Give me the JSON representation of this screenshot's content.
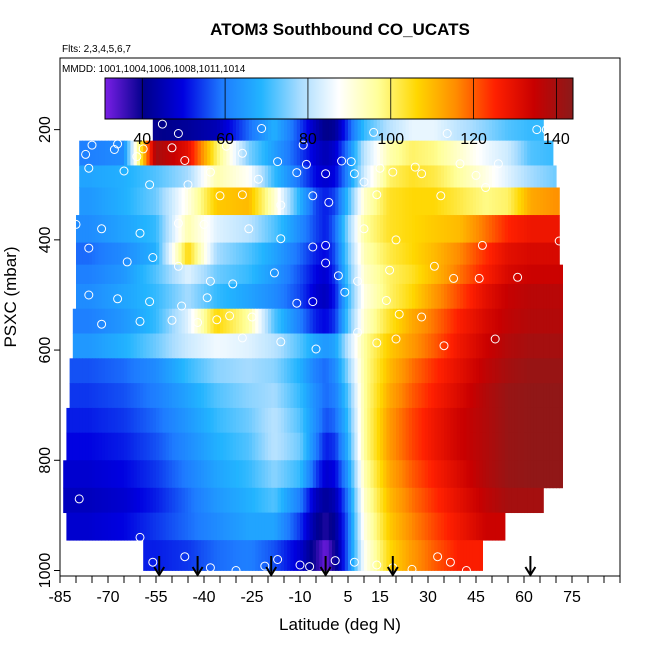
{
  "chart_data": {
    "type": "heatmap",
    "title": "ATOM3 Southbound CO_UCATS",
    "flights_label": "Flts: 2,3,4,5,6,7",
    "dates_label": "MMDD: 1001,1004,1006,1008,1011,1014",
    "xlabel": "Latitude (deg N)",
    "ylabel": "PSXC (mbar)",
    "xlim": [
      -85,
      90
    ],
    "ylim": [
      1010,
      70
    ],
    "x_ticks": [
      -85,
      -70,
      -55,
      -40,
      -25,
      -10,
      5,
      15,
      30,
      45,
      60,
      75
    ],
    "x_tick_labels": [
      "-85",
      "-70",
      "-55",
      "-40",
      "-25",
      "-10",
      "5",
      "15",
      "30",
      "45",
      "60",
      "75"
    ],
    "y_ticks": [
      200,
      400,
      600,
      800,
      1000
    ],
    "y_tick_labels": [
      "200",
      "400",
      "600",
      "800",
      "1000"
    ],
    "colorbar": {
      "range": [
        31,
        144
      ],
      "ticks": [
        40,
        60,
        80,
        100,
        120,
        140
      ],
      "tick_labels": [
        "40",
        "60",
        "80",
        "100",
        "120",
        "140"
      ],
      "colors": [
        "#7a1fe6",
        "#00008b",
        "#0000e0",
        "#1e7bff",
        "#22b4ff",
        "#a8dcff",
        "#ffffff",
        "#ffff99",
        "#ffd700",
        "#ff8c00",
        "#ff2000",
        "#c80000",
        "#8b1a1a"
      ]
    },
    "grid": false,
    "lat_nodes": [
      -76,
      -65,
      -55,
      -45,
      -36,
      -26,
      -18,
      -10,
      -5,
      -2,
      1,
      5,
      10,
      18,
      25,
      32,
      40,
      48,
      55,
      62,
      70
    ],
    "pressure_bands": [
      {
        "p_top": 175,
        "p_bottom": 220,
        "lat_min": -56,
        "lat_max": 66,
        "values": [
          null,
          null,
          40,
          42,
          45,
          58,
          68,
          55,
          45,
          40,
          42,
          55,
          70,
          80,
          85,
          85,
          80,
          76,
          72,
          70,
          70
        ]
      },
      {
        "p_top": 220,
        "p_bottom": 265,
        "lat_min": -79,
        "lat_max": 69,
        "values": [
          60,
          62,
          140,
          130,
          100,
          75,
          65,
          55,
          48,
          45,
          48,
          60,
          80,
          95,
          100,
          98,
          92,
          86,
          82,
          72,
          70
        ]
      },
      {
        "p_top": 265,
        "p_bottom": 305,
        "lat_min": -79,
        "lat_max": 70,
        "values": [
          66,
          68,
          72,
          78,
          95,
          88,
          70,
          58,
          50,
          48,
          50,
          62,
          82,
          100,
          104,
          102,
          96,
          90,
          84,
          78,
          74
        ]
      },
      {
        "p_top": 305,
        "p_bottom": 355,
        "lat_min": -79,
        "lat_max": 71,
        "values": [
          64,
          68,
          74,
          90,
          108,
          110,
          92,
          68,
          55,
          52,
          55,
          70,
          92,
          104,
          106,
          106,
          102,
          98,
          100,
          112,
          115
        ]
      },
      {
        "p_top": 355,
        "p_bottom": 405,
        "lat_min": -80,
        "lat_max": 71,
        "values": [
          62,
          66,
          70,
          95,
          84,
          80,
          72,
          62,
          55,
          52,
          58,
          76,
          96,
          104,
          106,
          108,
          110,
          118,
          125,
          128,
          128
        ]
      },
      {
        "p_top": 405,
        "p_bottom": 445,
        "lat_min": -80,
        "lat_max": 71,
        "values": [
          58,
          62,
          68,
          106,
          78,
          72,
          66,
          58,
          52,
          50,
          56,
          74,
          94,
          102,
          106,
          110,
          116,
          124,
          130,
          132,
          132
        ]
      },
      {
        "p_top": 445,
        "p_bottom": 480,
        "lat_min": -80,
        "lat_max": 72,
        "values": [
          60,
          64,
          72,
          84,
          74,
          70,
          64,
          56,
          50,
          48,
          54,
          72,
          92,
          100,
          104,
          110,
          118,
          126,
          132,
          134,
          134
        ]
      },
      {
        "p_top": 480,
        "p_bottom": 525,
        "lat_min": -80,
        "lat_max": 72,
        "values": [
          62,
          66,
          70,
          78,
          70,
          66,
          62,
          55,
          48,
          46,
          52,
          70,
          90,
          100,
          106,
          114,
          122,
          130,
          135,
          137,
          137
        ]
      },
      {
        "p_top": 525,
        "p_bottom": 570,
        "lat_min": -81,
        "lat_max": 72,
        "values": [
          60,
          64,
          70,
          84,
          106,
          96,
          72,
          60,
          52,
          50,
          54,
          72,
          92,
          104,
          112,
          118,
          126,
          132,
          136,
          138,
          138
        ]
      },
      {
        "p_top": 570,
        "p_bottom": 615,
        "lat_min": -81,
        "lat_max": 72,
        "values": [
          64,
          68,
          74,
          82,
          86,
          84,
          80,
          72,
          66,
          64,
          66,
          80,
          96,
          108,
          114,
          120,
          128,
          134,
          138,
          140,
          140
        ]
      },
      {
        "p_top": 615,
        "p_bottom": 660,
        "lat_min": -82,
        "lat_max": 72,
        "values": [
          56,
          58,
          62,
          70,
          76,
          78,
          76,
          68,
          60,
          58,
          62,
          76,
          96,
          110,
          118,
          124,
          130,
          136,
          140,
          142,
          142
        ]
      },
      {
        "p_top": 660,
        "p_bottom": 705,
        "lat_min": -82,
        "lat_max": 72,
        "values": [
          54,
          56,
          60,
          66,
          72,
          76,
          78,
          70,
          62,
          58,
          60,
          72,
          96,
          112,
          120,
          126,
          132,
          138,
          142,
          143,
          143
        ]
      },
      {
        "p_top": 705,
        "p_bottom": 750,
        "lat_min": -83,
        "lat_max": 72,
        "values": [
          52,
          54,
          58,
          64,
          70,
          74,
          80,
          72,
          62,
          56,
          58,
          70,
          96,
          114,
          122,
          128,
          134,
          138,
          142,
          143,
          143
        ]
      },
      {
        "p_top": 750,
        "p_bottom": 800,
        "lat_min": -83,
        "lat_max": 72,
        "values": [
          50,
          52,
          56,
          62,
          68,
          72,
          80,
          74,
          60,
          52,
          54,
          68,
          96,
          114,
          122,
          128,
          134,
          138,
          142,
          143,
          143
        ]
      },
      {
        "p_top": 800,
        "p_bottom": 850,
        "lat_min": -84,
        "lat_max": 72,
        "values": [
          48,
          50,
          54,
          60,
          66,
          70,
          76,
          70,
          55,
          48,
          50,
          64,
          94,
          112,
          120,
          126,
          132,
          138,
          142,
          143,
          143
        ]
      },
      {
        "p_top": 850,
        "p_bottom": 895,
        "lat_min": -84,
        "lat_max": 66,
        "values": [
          46,
          48,
          52,
          58,
          64,
          68,
          72,
          60,
          46,
          42,
          45,
          60,
          92,
          110,
          118,
          124,
          130,
          136,
          140,
          null,
          null
        ]
      },
      {
        "p_top": 895,
        "p_bottom": 945,
        "lat_min": -83,
        "lat_max": 54,
        "values": [
          48,
          50,
          54,
          58,
          62,
          66,
          66,
          54,
          42,
          38,
          42,
          58,
          90,
          108,
          116,
          122,
          128,
          134,
          null,
          null,
          null
        ]
      },
      {
        "p_top": 945,
        "p_bottom": 1000,
        "lat_min": -59,
        "lat_max": 47,
        "values": [
          null,
          null,
          52,
          54,
          58,
          60,
          56,
          48,
          38,
          32,
          40,
          58,
          88,
          106,
          114,
          120,
          126,
          null,
          null,
          null,
          null
        ]
      }
    ],
    "sample_points": [
      [
        -53,
        190
      ],
      [
        -48,
        207
      ],
      [
        -22,
        198
      ],
      [
        -9,
        228
      ],
      [
        13,
        205
      ],
      [
        36,
        207
      ],
      [
        64,
        200
      ],
      [
        67,
        200
      ],
      [
        -75,
        228
      ],
      [
        -67,
        226
      ],
      [
        -59,
        235
      ],
      [
        -50,
        233
      ],
      [
        -33,
        230
      ],
      [
        -28,
        243
      ],
      [
        -17,
        258
      ],
      [
        -8,
        263
      ],
      [
        3,
        257
      ],
      [
        6,
        258
      ],
      [
        15,
        270
      ],
      [
        19,
        277
      ],
      [
        26,
        268
      ],
      [
        40,
        262
      ],
      [
        52,
        262
      ],
      [
        -77,
        245
      ],
      [
        -68,
        236
      ],
      [
        -61,
        249
      ],
      [
        -46,
        256
      ],
      [
        -38,
        277
      ],
      [
        -23,
        290
      ],
      [
        -11,
        278
      ],
      [
        -2,
        280
      ],
      [
        7,
        280
      ],
      [
        10,
        295
      ],
      [
        28,
        280
      ],
      [
        45,
        283
      ],
      [
        -76,
        270
      ],
      [
        -65,
        275
      ],
      [
        -57,
        300
      ],
      [
        -45,
        300
      ],
      [
        -35,
        320
      ],
      [
        -28,
        318
      ],
      [
        -16,
        337
      ],
      [
        -6,
        320
      ],
      [
        -1,
        332
      ],
      [
        14,
        318
      ],
      [
        34,
        320
      ],
      [
        48,
        305
      ],
      [
        -80,
        372
      ],
      [
        -72,
        380
      ],
      [
        -60,
        388
      ],
      [
        -48,
        370
      ],
      [
        -40,
        372
      ],
      [
        -26,
        380
      ],
      [
        -16,
        398
      ],
      [
        -6,
        413
      ],
      [
        -2,
        410
      ],
      [
        10,
        380
      ],
      [
        20,
        400
      ],
      [
        47,
        410
      ],
      [
        71,
        402
      ],
      [
        -76,
        415
      ],
      [
        -64,
        440
      ],
      [
        -56,
        432
      ],
      [
        -48,
        448
      ],
      [
        -38,
        475
      ],
      [
        -31,
        480
      ],
      [
        -18,
        460
      ],
      [
        -2,
        442
      ],
      [
        2,
        465
      ],
      [
        8,
        475
      ],
      [
        18,
        455
      ],
      [
        32,
        448
      ],
      [
        38,
        470
      ],
      [
        46,
        470
      ],
      [
        58,
        468
      ],
      [
        -76,
        500
      ],
      [
        -67,
        507
      ],
      [
        -57,
        512
      ],
      [
        -47,
        520
      ],
      [
        -39,
        505
      ],
      [
        -32,
        538
      ],
      [
        -25,
        540
      ],
      [
        -11,
        515
      ],
      [
        -6,
        512
      ],
      [
        4,
        495
      ],
      [
        17,
        510
      ],
      [
        21,
        535
      ],
      [
        28,
        540
      ],
      [
        -72,
        553
      ],
      [
        -60,
        548
      ],
      [
        -50,
        546
      ],
      [
        -42,
        550
      ],
      [
        -36,
        545
      ],
      [
        -28,
        578
      ],
      [
        -16,
        585
      ],
      [
        -5,
        598
      ],
      [
        8,
        568
      ],
      [
        14,
        587
      ],
      [
        20,
        580
      ],
      [
        35,
        592
      ],
      [
        51,
        580
      ],
      [
        -79,
        870
      ],
      [
        -69,
        955
      ],
      [
        -60,
        940
      ],
      [
        -56,
        985
      ],
      [
        -46,
        975
      ],
      [
        -38,
        995
      ],
      [
        -30,
        1000
      ],
      [
        -21,
        992
      ],
      [
        -17,
        980
      ],
      [
        -10,
        990
      ],
      [
        -7,
        993
      ],
      [
        1,
        982
      ],
      [
        7,
        985
      ],
      [
        14,
        990
      ],
      [
        19,
        995
      ],
      [
        25,
        998
      ],
      [
        33,
        975
      ],
      [
        37,
        985
      ],
      [
        42,
        1000
      ],
      [
        50,
        990
      ]
    ],
    "flight_arrows": [
      -54,
      -42,
      -19,
      -2,
      19,
      62
    ]
  }
}
